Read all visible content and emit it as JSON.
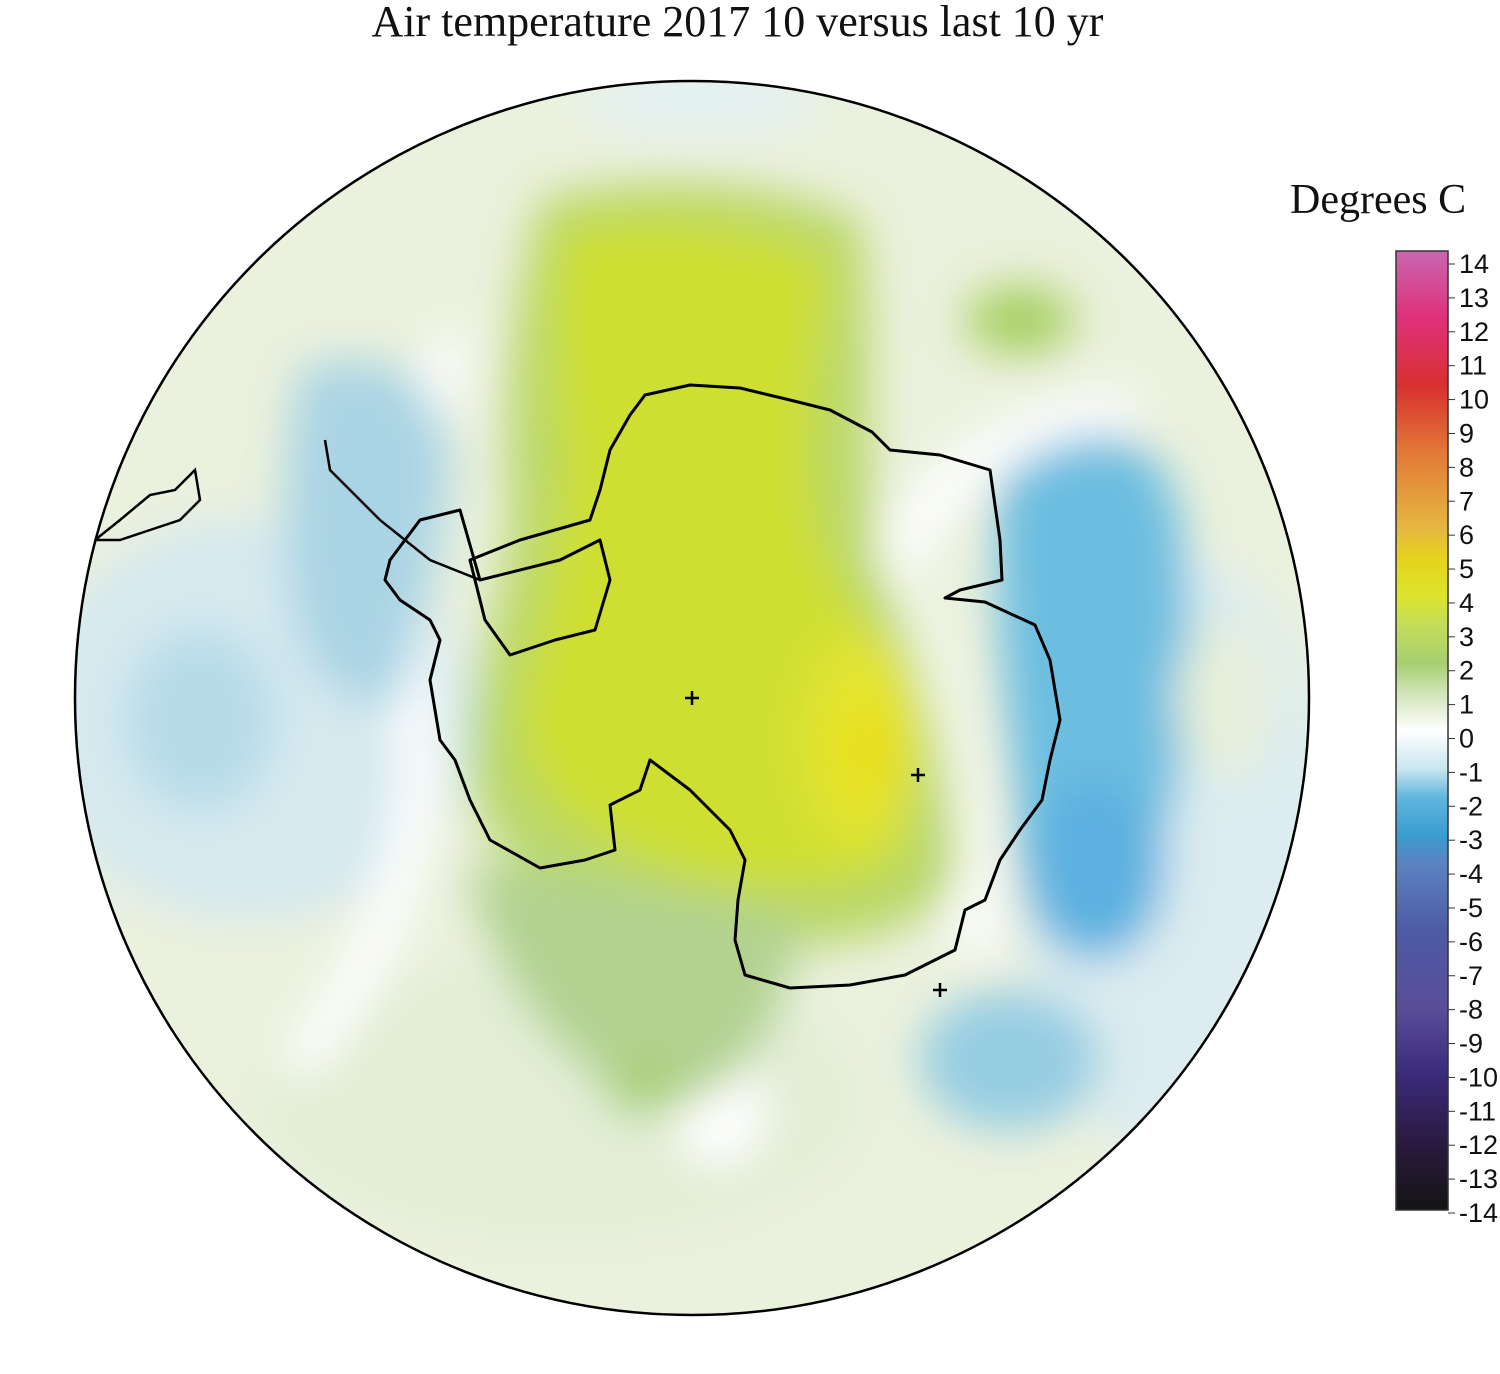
{
  "title": "Air temperature 2017 10 versus last 10 yr",
  "legend": {
    "title": "Degrees C",
    "ticks": [
      "14",
      "13",
      "12",
      "11",
      "10",
      "9",
      "8",
      "7",
      "6",
      "5",
      "4",
      "3",
      "2",
      "1",
      "0",
      "-1",
      "-2",
      "-3",
      "-4",
      "-5",
      "-6",
      "-7",
      "-8",
      "-9",
      "-10",
      "-11",
      "-12",
      "-13",
      "-14"
    ],
    "range": [
      -14,
      14
    ],
    "colors": {
      "14": "#c866b0",
      "12": "#e0307a",
      "10": "#d83030",
      "8": "#e27838",
      "6": "#e6b840",
      "5": "#e6d21c",
      "4": "#dde42c",
      "3": "#c3dd5a",
      "2": "#a6cf70",
      "1": "#cfe4b6",
      "0": "#ffffff",
      "-1": "#c9e6ef",
      "-2": "#5fb6de",
      "-3": "#3a9ccf",
      "-4": "#5c82c0",
      "-6": "#4d5aa4",
      "-8": "#5a4d98",
      "-10": "#3a2a7a",
      "-12": "#2a1a40",
      "-14": "#141414"
    }
  },
  "map": {
    "projection": "south polar stereographic",
    "markers": [
      "+",
      "+",
      "+"
    ]
  }
}
